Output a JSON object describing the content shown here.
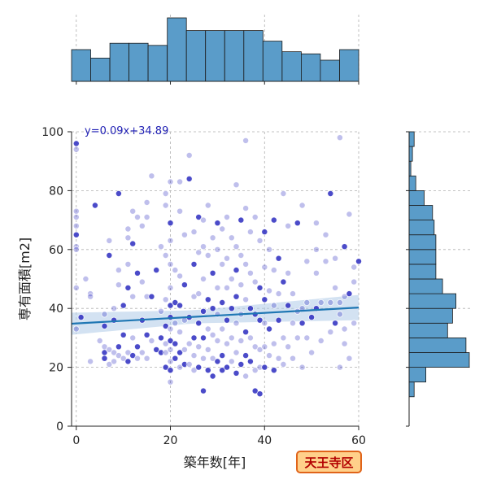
{
  "chart_data": {
    "type": "scatter",
    "xlabel": "築年数[年]",
    "ylabel": "専有面積[m2]",
    "xlim": [
      -1,
      60
    ],
    "ylim": [
      0,
      100
    ],
    "x_ticks": [
      "0",
      "20",
      "40",
      "60"
    ],
    "y_ticks": [
      "0",
      "20",
      "40",
      "60",
      "80",
      "100"
    ],
    "grid": true,
    "regression": {
      "label": "y=0.09x+34.89",
      "slope": 0.09,
      "intercept": 34.89
    },
    "badge": "天王寺区",
    "colors": {
      "point": "#2b2bbf",
      "line": "#1f77b4",
      "band": "#aecbe8",
      "hist": "#5a9cc9",
      "badge_fill": "#ffd08a",
      "badge_border": "#e0641a"
    },
    "points": [
      [
        0,
        96
      ],
      [
        0,
        94
      ],
      [
        0,
        73
      ],
      [
        0,
        71
      ],
      [
        0,
        68
      ],
      [
        0,
        65
      ],
      [
        0,
        61
      ],
      [
        0,
        60
      ],
      [
        0,
        47
      ],
      [
        0,
        33
      ],
      [
        1,
        37
      ],
      [
        2,
        50
      ],
      [
        3,
        45
      ],
      [
        3,
        44
      ],
      [
        3,
        22
      ],
      [
        4,
        75
      ],
      [
        5,
        29
      ],
      [
        6,
        38
      ],
      [
        6,
        34
      ],
      [
        6,
        27
      ],
      [
        6,
        25
      ],
      [
        6,
        23
      ],
      [
        7,
        26
      ],
      [
        7,
        21
      ],
      [
        7,
        63
      ],
      [
        7,
        58
      ],
      [
        8,
        40
      ],
      [
        8,
        36
      ],
      [
        8,
        25
      ],
      [
        8,
        22
      ],
      [
        9,
        79
      ],
      [
        9,
        53
      ],
      [
        9,
        48
      ],
      [
        9,
        27
      ],
      [
        9,
        24
      ],
      [
        10,
        41
      ],
      [
        10,
        31
      ],
      [
        10,
        23
      ],
      [
        11,
        67
      ],
      [
        11,
        55
      ],
      [
        11,
        47
      ],
      [
        11,
        25
      ],
      [
        11,
        22
      ],
      [
        11,
        64
      ],
      [
        12,
        73
      ],
      [
        12,
        62
      ],
      [
        12,
        44
      ],
      [
        12,
        30
      ],
      [
        12,
        24
      ],
      [
        13,
        71
      ],
      [
        13,
        52
      ],
      [
        13,
        27
      ],
      [
        13,
        23
      ],
      [
        14,
        68
      ],
      [
        14,
        49
      ],
      [
        14,
        36
      ],
      [
        14,
        25
      ],
      [
        15,
        76
      ],
      [
        15,
        71
      ],
      [
        15,
        44
      ],
      [
        15,
        31
      ],
      [
        15,
        23
      ],
      [
        16,
        85
      ],
      [
        16,
        44
      ],
      [
        16,
        29
      ],
      [
        17,
        53
      ],
      [
        17,
        26
      ],
      [
        18,
        61
      ],
      [
        18,
        39
      ],
      [
        18,
        30
      ],
      [
        18,
        25
      ],
      [
        19,
        79
      ],
      [
        19,
        75
      ],
      [
        19,
        58
      ],
      [
        19,
        43
      ],
      [
        19,
        34
      ],
      [
        19,
        28
      ],
      [
        19,
        25
      ],
      [
        19,
        20
      ],
      [
        20,
        83
      ],
      [
        20,
        69
      ],
      [
        20,
        63
      ],
      [
        20,
        55
      ],
      [
        20,
        47
      ],
      [
        20,
        41
      ],
      [
        20,
        37
      ],
      [
        20,
        33
      ],
      [
        20,
        29
      ],
      [
        20,
        26
      ],
      [
        20,
        22
      ],
      [
        20,
        19
      ],
      [
        20,
        15
      ],
      [
        21,
        53
      ],
      [
        21,
        42
      ],
      [
        21,
        35
      ],
      [
        21,
        28
      ],
      [
        21,
        23
      ],
      [
        22,
        83
      ],
      [
        22,
        73
      ],
      [
        22,
        51
      ],
      [
        22,
        41
      ],
      [
        22,
        32
      ],
      [
        22,
        25
      ],
      [
        22,
        20
      ],
      [
        23,
        65
      ],
      [
        23,
        48
      ],
      [
        23,
        36
      ],
      [
        23,
        26
      ],
      [
        23,
        21
      ],
      [
        24,
        92
      ],
      [
        24,
        84
      ],
      [
        24,
        37
      ],
      [
        24,
        28
      ],
      [
        24,
        21
      ],
      [
        25,
        66
      ],
      [
        25,
        55
      ],
      [
        25,
        44
      ],
      [
        25,
        30
      ],
      [
        25,
        24
      ],
      [
        25,
        19
      ],
      [
        26,
        71
      ],
      [
        26,
        59
      ],
      [
        26,
        45
      ],
      [
        26,
        35
      ],
      [
        26,
        27
      ],
      [
        26,
        20
      ],
      [
        27,
        70
      ],
      [
        27,
        61
      ],
      [
        27,
        50
      ],
      [
        27,
        39
      ],
      [
        27,
        30
      ],
      [
        27,
        23
      ],
      [
        27,
        12
      ],
      [
        28,
        75
      ],
      [
        28,
        58
      ],
      [
        28,
        43
      ],
      [
        28,
        33
      ],
      [
        28,
        26
      ],
      [
        28,
        19
      ],
      [
        29,
        64
      ],
      [
        29,
        52
      ],
      [
        29,
        40
      ],
      [
        29,
        31
      ],
      [
        29,
        23
      ],
      [
        29,
        17
      ],
      [
        30,
        69
      ],
      [
        30,
        60
      ],
      [
        30,
        47
      ],
      [
        30,
        38
      ],
      [
        30,
        29
      ],
      [
        30,
        22
      ],
      [
        31,
        67
      ],
      [
        31,
        55
      ],
      [
        31,
        42
      ],
      [
        31,
        33
      ],
      [
        31,
        24
      ],
      [
        31,
        19
      ],
      [
        32,
        71
      ],
      [
        32,
        57
      ],
      [
        32,
        47
      ],
      [
        32,
        36
      ],
      [
        32,
        28
      ],
      [
        32,
        20
      ],
      [
        33,
        64
      ],
      [
        33,
        50
      ],
      [
        33,
        40
      ],
      [
        33,
        30
      ],
      [
        33,
        22
      ],
      [
        34,
        82
      ],
      [
        34,
        61
      ],
      [
        34,
        53
      ],
      [
        34,
        44
      ],
      [
        34,
        35
      ],
      [
        34,
        25
      ],
      [
        34,
        18
      ],
      [
        35,
        70
      ],
      [
        35,
        58
      ],
      [
        35,
        48
      ],
      [
        35,
        38
      ],
      [
        35,
        29
      ],
      [
        35,
        21
      ],
      [
        36,
        97
      ],
      [
        36,
        74
      ],
      [
        36,
        55
      ],
      [
        36,
        43
      ],
      [
        36,
        32
      ],
      [
        36,
        24
      ],
      [
        36,
        17
      ],
      [
        37,
        66
      ],
      [
        37,
        52
      ],
      [
        37,
        40
      ],
      [
        37,
        30
      ],
      [
        37,
        22
      ],
      [
        38,
        71
      ],
      [
        38,
        49
      ],
      [
        38,
        38
      ],
      [
        38,
        27
      ],
      [
        38,
        19
      ],
      [
        38,
        12
      ],
      [
        39,
        63
      ],
      [
        39,
        47
      ],
      [
        39,
        36
      ],
      [
        39,
        26
      ],
      [
        39,
        20
      ],
      [
        39,
        11
      ],
      [
        40,
        66
      ],
      [
        40,
        54
      ],
      [
        40,
        43
      ],
      [
        40,
        35
      ],
      [
        40,
        27
      ],
      [
        40,
        20
      ],
      [
        41,
        60
      ],
      [
        41,
        46
      ],
      [
        41,
        33
      ],
      [
        41,
        24
      ],
      [
        42,
        70
      ],
      [
        42,
        53
      ],
      [
        42,
        41
      ],
      [
        42,
        28
      ],
      [
        42,
        19
      ],
      [
        43,
        57
      ],
      [
        43,
        45
      ],
      [
        43,
        36
      ],
      [
        43,
        23
      ],
      [
        44,
        79
      ],
      [
        44,
        49
      ],
      [
        44,
        30
      ],
      [
        44,
        21
      ],
      [
        45,
        68
      ],
      [
        45,
        52
      ],
      [
        45,
        41
      ],
      [
        45,
        27
      ],
      [
        46,
        45
      ],
      [
        46,
        35
      ],
      [
        46,
        23
      ],
      [
        47,
        69
      ],
      [
        47,
        39
      ],
      [
        47,
        30
      ],
      [
        48,
        75
      ],
      [
        48,
        40
      ],
      [
        48,
        35
      ],
      [
        48,
        20
      ],
      [
        49,
        56
      ],
      [
        49,
        42
      ],
      [
        49,
        30
      ],
      [
        50,
        37
      ],
      [
        50,
        25
      ],
      [
        51,
        69
      ],
      [
        51,
        60
      ],
      [
        51,
        52
      ],
      [
        51,
        40
      ],
      [
        52,
        42
      ],
      [
        52,
        29
      ],
      [
        53,
        65
      ],
      [
        53,
        56
      ],
      [
        54,
        79
      ],
      [
        54,
        42
      ],
      [
        54,
        32
      ],
      [
        55,
        57
      ],
      [
        55,
        47
      ],
      [
        55,
        35
      ],
      [
        56,
        98
      ],
      [
        56,
        42
      ],
      [
        56,
        38
      ],
      [
        56,
        20
      ],
      [
        57,
        61
      ],
      [
        57,
        44
      ],
      [
        57,
        33
      ],
      [
        57,
        28
      ],
      [
        58,
        72
      ],
      [
        58,
        45
      ],
      [
        58,
        23
      ],
      [
        59,
        54
      ],
      [
        59,
        49
      ],
      [
        59,
        35
      ],
      [
        60,
        56
      ]
    ]
  }
}
